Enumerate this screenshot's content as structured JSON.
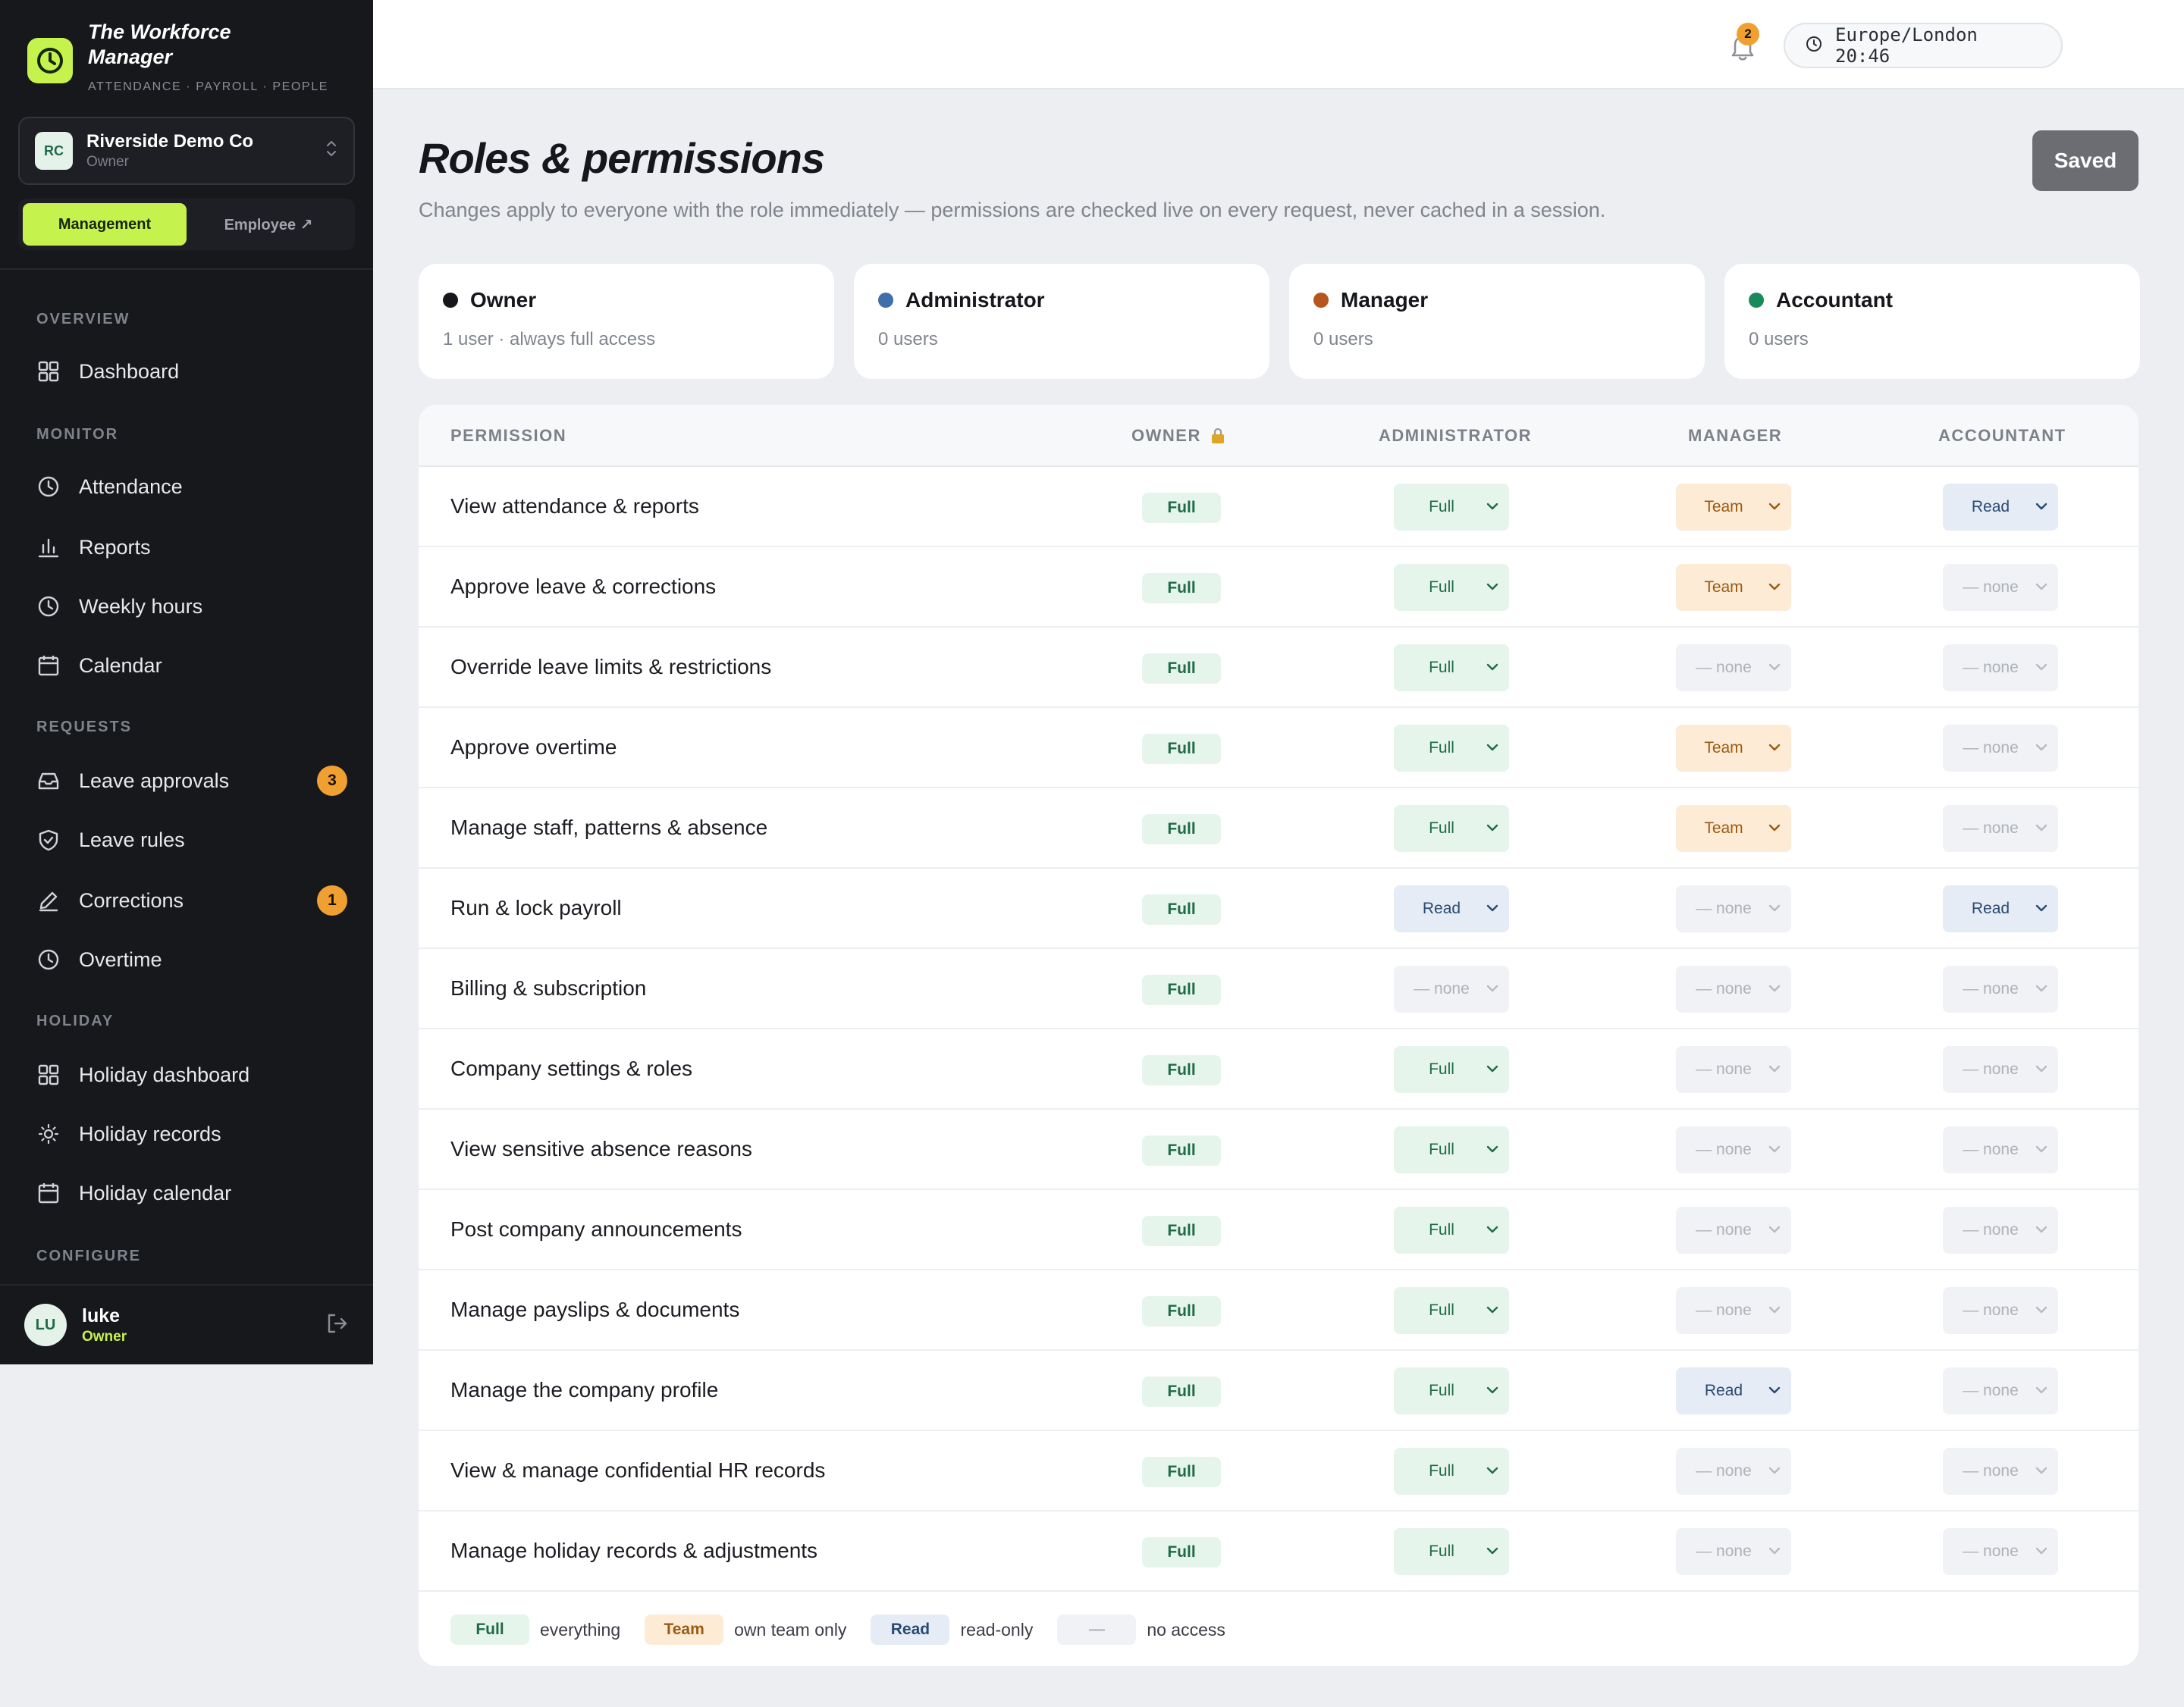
{
  "app": {
    "title": "The Workforce Manager",
    "subtitle": "ATTENDANCE · PAYROLL · PEOPLE"
  },
  "company": {
    "initials": "RC",
    "name": "Riverside Demo Co",
    "role": "Owner"
  },
  "mode": {
    "management": "Management",
    "employee": "Employee ↗"
  },
  "nav": {
    "sections": {
      "overview": "OVERVIEW",
      "monitor": "MONITOR",
      "requests": "REQUESTS",
      "holiday": "HOLIDAY",
      "configure": "CONFIGURE"
    },
    "items": {
      "dashboard": "Dashboard",
      "attendance": "Attendance",
      "reports": "Reports",
      "weekly_hours": "Weekly hours",
      "calendar": "Calendar",
      "leave_approvals": "Leave approvals",
      "leave_approvals_badge": "3",
      "leave_rules": "Leave rules",
      "corrections": "Corrections",
      "corrections_badge": "1",
      "overtime": "Overtime",
      "holiday_dashboard": "Holiday dashboard",
      "holiday_records": "Holiday records",
      "holiday_calendar": "Holiday calendar"
    }
  },
  "user": {
    "initials": "LU",
    "name": "luke",
    "role": "Owner"
  },
  "topbar": {
    "timezone": "Europe/London 20:46",
    "notifications_count": "2"
  },
  "page": {
    "title": "Roles & permissions",
    "description": "Changes apply to everyone with the role immediately — permissions are checked live on every request, never cached in a session.",
    "saved_label": "Saved"
  },
  "roles": [
    {
      "name": "Owner",
      "meta": "1 user · always full access",
      "color": "#16171a"
    },
    {
      "name": "Administrator",
      "meta": "0 users",
      "color": "#3f6fa8"
    },
    {
      "name": "Manager",
      "meta": "0 users",
      "color": "#b5561f"
    },
    {
      "name": "Accountant",
      "meta": "0 users",
      "color": "#1a8a5c"
    }
  ],
  "table": {
    "headers": {
      "permission": "PERMISSION",
      "owner": "OWNER",
      "administrator": "ADMINISTRATOR",
      "manager": "MANAGER",
      "accountant": "ACCOUNTANT"
    },
    "rows": [
      {
        "permission": "View attendance & reports",
        "owner": "Full",
        "administrator": "Full",
        "manager": "Team",
        "accountant": "Read"
      },
      {
        "permission": "Approve leave & corrections",
        "owner": "Full",
        "administrator": "Full",
        "manager": "Team",
        "accountant": "— none"
      },
      {
        "permission": "Override leave limits & restrictions",
        "owner": "Full",
        "administrator": "Full",
        "manager": "— none",
        "accountant": "— none"
      },
      {
        "permission": "Approve overtime",
        "owner": "Full",
        "administrator": "Full",
        "manager": "Team",
        "accountant": "— none"
      },
      {
        "permission": "Manage staff, patterns & absence",
        "owner": "Full",
        "administrator": "Full",
        "manager": "Team",
        "accountant": "— none"
      },
      {
        "permission": "Run & lock payroll",
        "owner": "Full",
        "administrator": "Read",
        "manager": "— none",
        "accountant": "Read"
      },
      {
        "permission": "Billing & subscription",
        "owner": "Full",
        "administrator": "— none",
        "manager": "— none",
        "accountant": "— none"
      },
      {
        "permission": "Company settings & roles",
        "owner": "Full",
        "administrator": "Full",
        "manager": "— none",
        "accountant": "— none"
      },
      {
        "permission": "View sensitive absence reasons",
        "owner": "Full",
        "administrator": "Full",
        "manager": "— none",
        "accountant": "— none"
      },
      {
        "permission": "Post company announcements",
        "owner": "Full",
        "administrator": "Full",
        "manager": "— none",
        "accountant": "— none"
      },
      {
        "permission": "Manage payslips & documents",
        "owner": "Full",
        "administrator": "Full",
        "manager": "— none",
        "accountant": "— none"
      },
      {
        "permission": "Manage the company profile",
        "owner": "Full",
        "administrator": "Full",
        "manager": "Read",
        "accountant": "— none"
      },
      {
        "permission": "View & manage confidential HR records",
        "owner": "Full",
        "administrator": "Full",
        "manager": "— none",
        "accountant": "— none"
      },
      {
        "permission": "Manage holiday records & adjustments",
        "owner": "Full",
        "administrator": "Full",
        "manager": "— none",
        "accountant": "— none"
      }
    ]
  },
  "legend": [
    {
      "pill": "Full",
      "text": "everything"
    },
    {
      "pill": "Team",
      "text": "own team only"
    },
    {
      "pill": "Read",
      "text": "read-only"
    },
    {
      "pill": "—",
      "text": "no access"
    }
  ]
}
